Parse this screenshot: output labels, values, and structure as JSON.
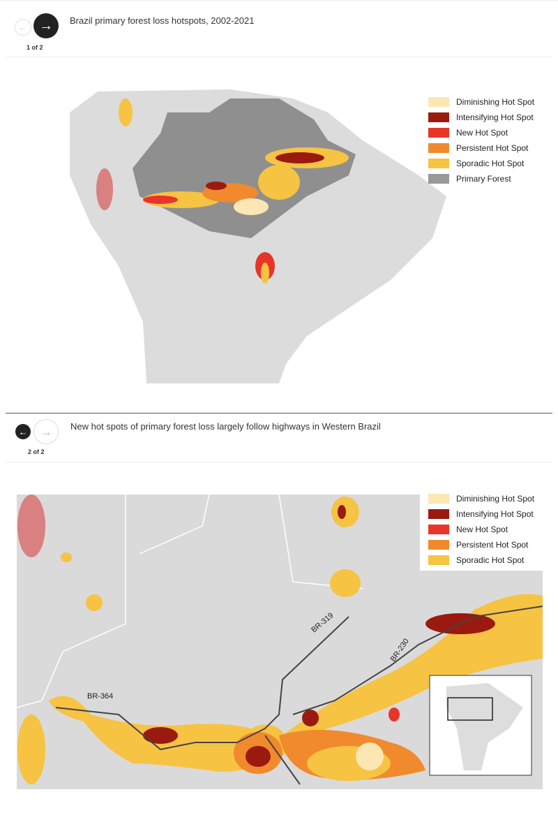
{
  "slides": [
    {
      "title": "Brazil primary forest loss hotspots, 2002-2021",
      "counter": "1 of 2",
      "legend": [
        {
          "label": "Diminishing Hot Spot",
          "color": "#fce6b4"
        },
        {
          "label": "Intensifying Hot Spot",
          "color": "#9a1a10"
        },
        {
          "label": "New Hot Spot",
          "color": "#e8352a"
        },
        {
          "label": "Persistent Hot Spot",
          "color": "#f08a2c"
        },
        {
          "label": "Sporadic Hot Spot",
          "color": "#f6c343"
        },
        {
          "label": "Primary Forest",
          "color": "#999999"
        }
      ]
    },
    {
      "title": "New hot spots of primary forest loss largely follow highways in Western Brazil",
      "counter": "2 of 2",
      "legend": [
        {
          "label": "Diminishing Hot Spot",
          "color": "#fce6b4"
        },
        {
          "label": "Intensifying Hot Spot",
          "color": "#9a1a10"
        },
        {
          "label": "New Hot Spot",
          "color": "#e8352a"
        },
        {
          "label": "Persistent Hot Spot",
          "color": "#f08a2c"
        },
        {
          "label": "Sporadic Hot Spot",
          "color": "#f6c343"
        }
      ],
      "roads": [
        "BR-319",
        "BR-230",
        "BR-364"
      ]
    }
  ]
}
